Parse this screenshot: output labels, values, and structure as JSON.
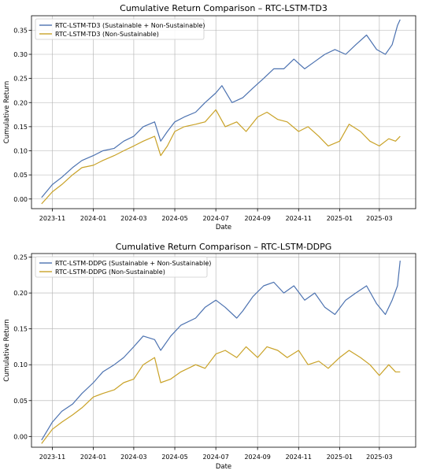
{
  "chart_data": [
    {
      "type": "line",
      "title": "Cumulative Return Comparison – RTC-LSTM-TD3",
      "xlabel": "Date",
      "ylabel": "Cumulative Return",
      "x_ticks": [
        "2023-11",
        "2024-01",
        "2024-03",
        "2024-05",
        "2024-07",
        "2024-09",
        "2024-11",
        "2025-01",
        "2025-03"
      ],
      "y_ticks": [
        "0.00",
        "0.05",
        "0.10",
        "0.15",
        "0.20",
        "0.25",
        "0.30",
        "0.35"
      ],
      "ylim": [
        -0.02,
        0.38
      ],
      "grid": true,
      "legend_position": "top-left",
      "series": [
        {
          "name": "RTC-LSTM-TD3 (Sustainable + Non-Sustainable)",
          "color": "#4c72b0",
          "points": [
            [
              "2023-10-16",
              0.003
            ],
            [
              "2023-11-01",
              0.03
            ],
            [
              "2023-11-15",
              0.045
            ],
            [
              "2023-12-01",
              0.065
            ],
            [
              "2023-12-15",
              0.08
            ],
            [
              "2024-01-01",
              0.09
            ],
            [
              "2024-01-15",
              0.1
            ],
            [
              "2024-02-01",
              0.105
            ],
            [
              "2024-02-15",
              0.12
            ],
            [
              "2024-03-01",
              0.13
            ],
            [
              "2024-03-15",
              0.15
            ],
            [
              "2024-04-01",
              0.16
            ],
            [
              "2024-04-10",
              0.12
            ],
            [
              "2024-04-20",
              0.14
            ],
            [
              "2024-05-01",
              0.16
            ],
            [
              "2024-05-15",
              0.17
            ],
            [
              "2024-06-01",
              0.18
            ],
            [
              "2024-06-15",
              0.2
            ],
            [
              "2024-07-01",
              0.22
            ],
            [
              "2024-07-10",
              0.235
            ],
            [
              "2024-07-25",
              0.2
            ],
            [
              "2024-08-10",
              0.21
            ],
            [
              "2024-08-25",
              0.23
            ],
            [
              "2024-09-10",
              0.25
            ],
            [
              "2024-09-25",
              0.27
            ],
            [
              "2024-10-10",
              0.27
            ],
            [
              "2024-10-25",
              0.29
            ],
            [
              "2024-11-10",
              0.27
            ],
            [
              "2024-11-25",
              0.285
            ],
            [
              "2024-12-10",
              0.3
            ],
            [
              "2024-12-25",
              0.31
            ],
            [
              "2025-01-10",
              0.3
            ],
            [
              "2025-01-25",
              0.32
            ],
            [
              "2025-02-10",
              0.34
            ],
            [
              "2025-02-25",
              0.31
            ],
            [
              "2025-03-10",
              0.3
            ],
            [
              "2025-03-20",
              0.32
            ],
            [
              "2025-03-28",
              0.36
            ],
            [
              "2025-04-01",
              0.372
            ]
          ]
        },
        {
          "name": "RTC-LSTM-TD3 (Non-Sustainable)",
          "color": "#c9a227",
          "points": [
            [
              "2023-10-16",
              -0.01
            ],
            [
              "2023-11-01",
              0.015
            ],
            [
              "2023-11-15",
              0.03
            ],
            [
              "2023-12-01",
              0.05
            ],
            [
              "2023-12-15",
              0.065
            ],
            [
              "2024-01-01",
              0.07
            ],
            [
              "2024-01-15",
              0.08
            ],
            [
              "2024-02-01",
              0.09
            ],
            [
              "2024-02-15",
              0.1
            ],
            [
              "2024-03-01",
              0.11
            ],
            [
              "2024-03-15",
              0.12
            ],
            [
              "2024-04-01",
              0.13
            ],
            [
              "2024-04-10",
              0.09
            ],
            [
              "2024-04-20",
              0.11
            ],
            [
              "2024-05-01",
              0.14
            ],
            [
              "2024-05-15",
              0.15
            ],
            [
              "2024-06-01",
              0.155
            ],
            [
              "2024-06-15",
              0.16
            ],
            [
              "2024-07-01",
              0.185
            ],
            [
              "2024-07-15",
              0.15
            ],
            [
              "2024-08-01",
              0.16
            ],
            [
              "2024-08-15",
              0.14
            ],
            [
              "2024-09-01",
              0.17
            ],
            [
              "2024-09-15",
              0.18
            ],
            [
              "2024-10-01",
              0.165
            ],
            [
              "2024-10-15",
              0.16
            ],
            [
              "2024-11-01",
              0.14
            ],
            [
              "2024-11-15",
              0.15
            ],
            [
              "2024-12-01",
              0.13
            ],
            [
              "2024-12-15",
              0.11
            ],
            [
              "2025-01-01",
              0.12
            ],
            [
              "2025-01-15",
              0.155
            ],
            [
              "2025-02-01",
              0.14
            ],
            [
              "2025-02-15",
              0.12
            ],
            [
              "2025-03-01",
              0.11
            ],
            [
              "2025-03-15",
              0.125
            ],
            [
              "2025-03-25",
              0.12
            ],
            [
              "2025-04-01",
              0.13
            ]
          ]
        }
      ]
    },
    {
      "type": "line",
      "title": "Cumulative Return Comparison – RTC-LSTM-DDPG",
      "xlabel": "Date",
      "ylabel": "Cumulative Return",
      "x_ticks": [
        "2023-11",
        "2024-01",
        "2024-03",
        "2024-05",
        "2024-07",
        "2024-09",
        "2024-11",
        "2025-01",
        "2025-03"
      ],
      "y_ticks": [
        "0.00",
        "0.05",
        "0.10",
        "0.15",
        "0.20",
        "0.25"
      ],
      "ylim": [
        -0.015,
        0.255
      ],
      "grid": true,
      "legend_position": "top-left",
      "series": [
        {
          "name": "RTC-LSTM-DDPG (Sustainable + Non-Sustainable)",
          "color": "#4c72b0",
          "points": [
            [
              "2023-10-16",
              -0.005
            ],
            [
              "2023-11-01",
              0.02
            ],
            [
              "2023-11-15",
              0.035
            ],
            [
              "2023-12-01",
              0.045
            ],
            [
              "2023-12-15",
              0.06
            ],
            [
              "2024-01-01",
              0.075
            ],
            [
              "2024-01-15",
              0.09
            ],
            [
              "2024-02-01",
              0.1
            ],
            [
              "2024-02-15",
              0.11
            ],
            [
              "2024-03-01",
              0.125
            ],
            [
              "2024-03-15",
              0.14
            ],
            [
              "2024-04-01",
              0.135
            ],
            [
              "2024-04-10",
              0.12
            ],
            [
              "2024-04-25",
              0.14
            ],
            [
              "2024-05-10",
              0.155
            ],
            [
              "2024-06-01",
              0.165
            ],
            [
              "2024-06-15",
              0.18
            ],
            [
              "2024-07-01",
              0.19
            ],
            [
              "2024-07-15",
              0.18
            ],
            [
              "2024-08-01",
              0.165
            ],
            [
              "2024-08-10",
              0.175
            ],
            [
              "2024-08-25",
              0.195
            ],
            [
              "2024-09-10",
              0.21
            ],
            [
              "2024-09-25",
              0.215
            ],
            [
              "2024-10-10",
              0.2
            ],
            [
              "2024-10-25",
              0.21
            ],
            [
              "2024-11-10",
              0.19
            ],
            [
              "2024-11-25",
              0.2
            ],
            [
              "2024-12-10",
              0.18
            ],
            [
              "2024-12-25",
              0.17
            ],
            [
              "2025-01-10",
              0.19
            ],
            [
              "2025-01-25",
              0.2
            ],
            [
              "2025-02-10",
              0.21
            ],
            [
              "2025-02-25",
              0.185
            ],
            [
              "2025-03-10",
              0.17
            ],
            [
              "2025-03-20",
              0.19
            ],
            [
              "2025-03-28",
              0.21
            ],
            [
              "2025-04-01",
              0.245
            ]
          ]
        },
        {
          "name": "RTC-LSTM-DDPG (Non-Sustainable)",
          "color": "#c9a227",
          "points": [
            [
              "2023-10-16",
              -0.01
            ],
            [
              "2023-11-01",
              0.01
            ],
            [
              "2023-11-15",
              0.02
            ],
            [
              "2023-12-01",
              0.03
            ],
            [
              "2023-12-15",
              0.04
            ],
            [
              "2024-01-01",
              0.055
            ],
            [
              "2024-01-15",
              0.06
            ],
            [
              "2024-02-01",
              0.065
            ],
            [
              "2024-02-15",
              0.075
            ],
            [
              "2024-03-01",
              0.08
            ],
            [
              "2024-03-15",
              0.1
            ],
            [
              "2024-04-01",
              0.11
            ],
            [
              "2024-04-10",
              0.075
            ],
            [
              "2024-04-25",
              0.08
            ],
            [
              "2024-05-10",
              0.09
            ],
            [
              "2024-06-01",
              0.1
            ],
            [
              "2024-06-15",
              0.095
            ],
            [
              "2024-07-01",
              0.115
            ],
            [
              "2024-07-15",
              0.12
            ],
            [
              "2024-08-01",
              0.11
            ],
            [
              "2024-08-15",
              0.125
            ],
            [
              "2024-09-01",
              0.11
            ],
            [
              "2024-09-15",
              0.125
            ],
            [
              "2024-10-01",
              0.12
            ],
            [
              "2024-10-15",
              0.11
            ],
            [
              "2024-11-01",
              0.12
            ],
            [
              "2024-11-15",
              0.1
            ],
            [
              "2024-12-01",
              0.105
            ],
            [
              "2024-12-15",
              0.095
            ],
            [
              "2025-01-01",
              0.11
            ],
            [
              "2025-01-15",
              0.12
            ],
            [
              "2025-02-01",
              0.11
            ],
            [
              "2025-02-15",
              0.1
            ],
            [
              "2025-03-01",
              0.085
            ],
            [
              "2025-03-15",
              0.1
            ],
            [
              "2025-03-25",
              0.09
            ],
            [
              "2025-04-01",
              0.09
            ]
          ]
        }
      ]
    }
  ]
}
